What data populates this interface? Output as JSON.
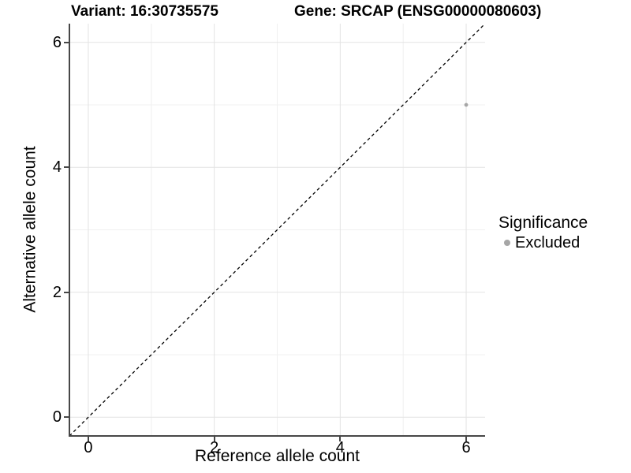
{
  "titles": {
    "variant": "Variant: 16:30735575",
    "gene": "Gene: SRCAP (ENSG00000080603)"
  },
  "axes": {
    "x": {
      "label": "Reference allele count",
      "ticks": [
        {
          "value": 0,
          "label": "0"
        },
        {
          "value": 2,
          "label": "2"
        },
        {
          "value": 4,
          "label": "4"
        },
        {
          "value": 6,
          "label": "6"
        }
      ]
    },
    "y": {
      "label": "Alternative allele count",
      "ticks": [
        {
          "value": 0,
          "label": "0"
        },
        {
          "value": 2,
          "label": "2"
        },
        {
          "value": 4,
          "label": "4"
        },
        {
          "value": 6,
          "label": "6"
        }
      ]
    }
  },
  "legend": {
    "title": "Significance",
    "items": [
      {
        "label": "Excluded",
        "color": "#a6a6a6"
      }
    ]
  },
  "chart_data": {
    "type": "scatter",
    "title": "Variant: 16:30735575",
    "subtitle": "Gene: SRCAP (ENSG00000080603)",
    "xlabel": "Reference allele count",
    "ylabel": "Alternative allele count",
    "xlim": [
      -0.3,
      6.3
    ],
    "ylim": [
      -0.3,
      6.3
    ],
    "xticks": [
      0,
      2,
      4,
      6
    ],
    "yticks": [
      0,
      2,
      4,
      6
    ],
    "minor_gridlines": [
      1,
      3,
      5
    ],
    "grid": true,
    "legend_position": "right",
    "series": [
      {
        "name": "Excluded",
        "color": "#a6a6a6",
        "point_radius_px": 2.4,
        "points": [
          [
            6,
            5
          ]
        ]
      }
    ],
    "identity_line": {
      "style": "dashed",
      "color": "#000000",
      "from": [
        -0.3,
        -0.3
      ],
      "to": [
        6.3,
        6.3
      ]
    }
  },
  "colors": {
    "background": "#ffffff",
    "major_grid": "#e3e3e3",
    "minor_grid": "#f0f0f0",
    "axis_line": "#474747",
    "text": "#000000",
    "point": "#a6a6a6"
  }
}
